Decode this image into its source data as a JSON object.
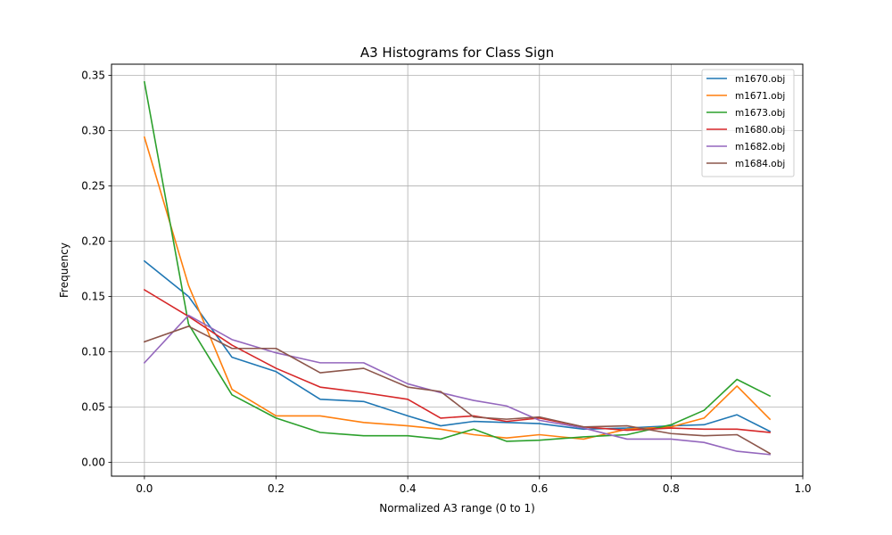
{
  "chart_data": {
    "type": "line",
    "title": "A3 Histograms for Class Sign",
    "xlabel": "Normalized A3 range (0 to 1)",
    "ylabel": "Frequency",
    "xlim": [
      -0.05,
      1.0
    ],
    "ylim": [
      -0.0125,
      0.36
    ],
    "xticks": [
      0.0,
      0.2,
      0.4,
      0.6,
      0.8,
      1.0
    ],
    "xtick_labels": [
      "0.0",
      "0.2",
      "0.4",
      "0.6",
      "0.8",
      "1.0"
    ],
    "yticks": [
      0.0,
      0.05,
      0.1,
      0.15,
      0.2,
      0.25,
      0.3,
      0.35
    ],
    "ytick_labels": [
      "0.00",
      "0.05",
      "0.10",
      "0.15",
      "0.20",
      "0.25",
      "0.30",
      "0.35"
    ],
    "grid": true,
    "legend_position": "top-right",
    "x": [
      0.0,
      0.067,
      0.133,
      0.2,
      0.267,
      0.333,
      0.4,
      0.45,
      0.5,
      0.55,
      0.6,
      0.667,
      0.733,
      0.8,
      0.85,
      0.9,
      0.95
    ],
    "series": [
      {
        "name": "m1670.obj",
        "color": "#1f77b4",
        "values": [
          0.182,
          0.15,
          0.095,
          0.082,
          0.057,
          0.055,
          0.042,
          0.033,
          0.037,
          0.036,
          0.035,
          0.03,
          0.031,
          0.033,
          0.034,
          0.043,
          0.028
        ]
      },
      {
        "name": "m1671.obj",
        "color": "#ff7f0e",
        "values": [
          0.294,
          0.16,
          0.066,
          0.042,
          0.042,
          0.036,
          0.033,
          0.03,
          0.025,
          0.022,
          0.025,
          0.021,
          0.03,
          0.032,
          0.04,
          0.069,
          0.039
        ]
      },
      {
        "name": "m1673.obj",
        "color": "#2ca02c",
        "values": [
          0.344,
          0.125,
          0.061,
          0.04,
          0.027,
          0.024,
          0.024,
          0.021,
          0.03,
          0.019,
          0.02,
          0.023,
          0.025,
          0.034,
          0.047,
          0.075,
          0.06
        ]
      },
      {
        "name": "m1680.obj",
        "color": "#d62728",
        "values": [
          0.156,
          0.132,
          0.106,
          0.085,
          0.068,
          0.063,
          0.057,
          0.04,
          0.042,
          0.037,
          0.04,
          0.032,
          0.029,
          0.031,
          0.03,
          0.03,
          0.027
        ]
      },
      {
        "name": "m1682.obj",
        "color": "#9467bd",
        "values": [
          0.09,
          0.133,
          0.111,
          0.099,
          0.09,
          0.09,
          0.071,
          0.063,
          0.056,
          0.051,
          0.038,
          0.031,
          0.021,
          0.021,
          0.018,
          0.01,
          0.007
        ]
      },
      {
        "name": "m1684.obj",
        "color": "#8c564b",
        "values": [
          0.109,
          0.123,
          0.103,
          0.103,
          0.081,
          0.085,
          0.068,
          0.064,
          0.041,
          0.039,
          0.041,
          0.032,
          0.033,
          0.026,
          0.024,
          0.025,
          0.008
        ]
      }
    ]
  }
}
